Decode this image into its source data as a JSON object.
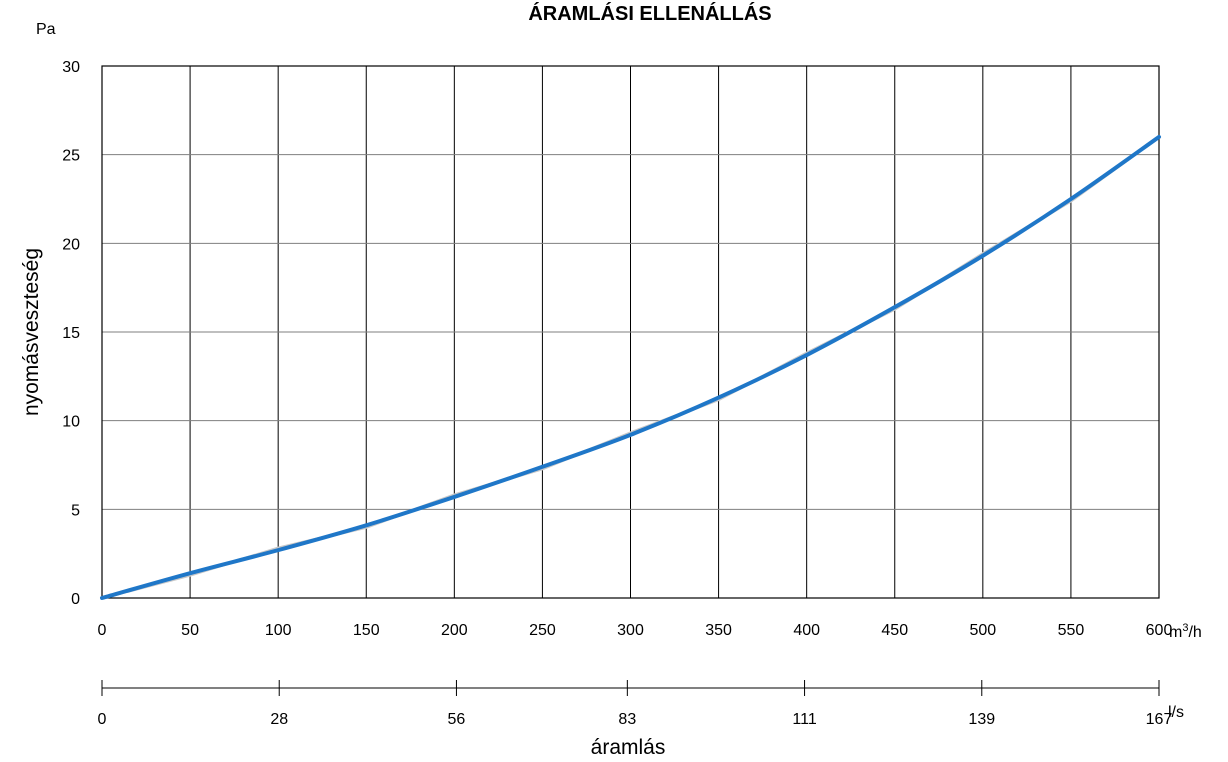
{
  "chart_data": {
    "type": "line",
    "title": "ÁRAMLÁSI ELLENÁLLÁS",
    "ylabel": "nyomásveszteség",
    "yunit": "Pa",
    "xlabel": "áramlás",
    "xunit_primary": "m³/h",
    "xunit_secondary": "l/s",
    "xlim": [
      0,
      600
    ],
    "ylim": [
      0,
      30
    ],
    "x_ticks": [
      "0",
      "50",
      "100",
      "150",
      "200",
      "250",
      "300",
      "350",
      "400",
      "450",
      "500",
      "550",
      "600"
    ],
    "y_ticks": [
      "0",
      "5",
      "10",
      "15",
      "20",
      "25",
      "30"
    ],
    "secondary_x_ticks": [
      {
        "value": 0,
        "label": "0"
      },
      {
        "value": 28,
        "label": "28"
      },
      {
        "value": 56,
        "label": "56"
      },
      {
        "value": 83,
        "label": "83"
      },
      {
        "value": 111,
        "label": "111"
      },
      {
        "value": 139,
        "label": "139"
      },
      {
        "value": 167,
        "label": "167"
      }
    ],
    "secondary_xlim": [
      0,
      167
    ],
    "grid": true,
    "series": [
      {
        "x": [
          0,
          50,
          100,
          150,
          200,
          250,
          300,
          350,
          400,
          450,
          500,
          550,
          600
        ],
        "y": [
          0,
          1.4,
          2.7,
          4.1,
          5.7,
          7.4,
          9.2,
          11.3,
          13.7,
          16.4,
          19.3,
          22.5,
          26
        ],
        "color": "#1f77c8"
      }
    ]
  }
}
